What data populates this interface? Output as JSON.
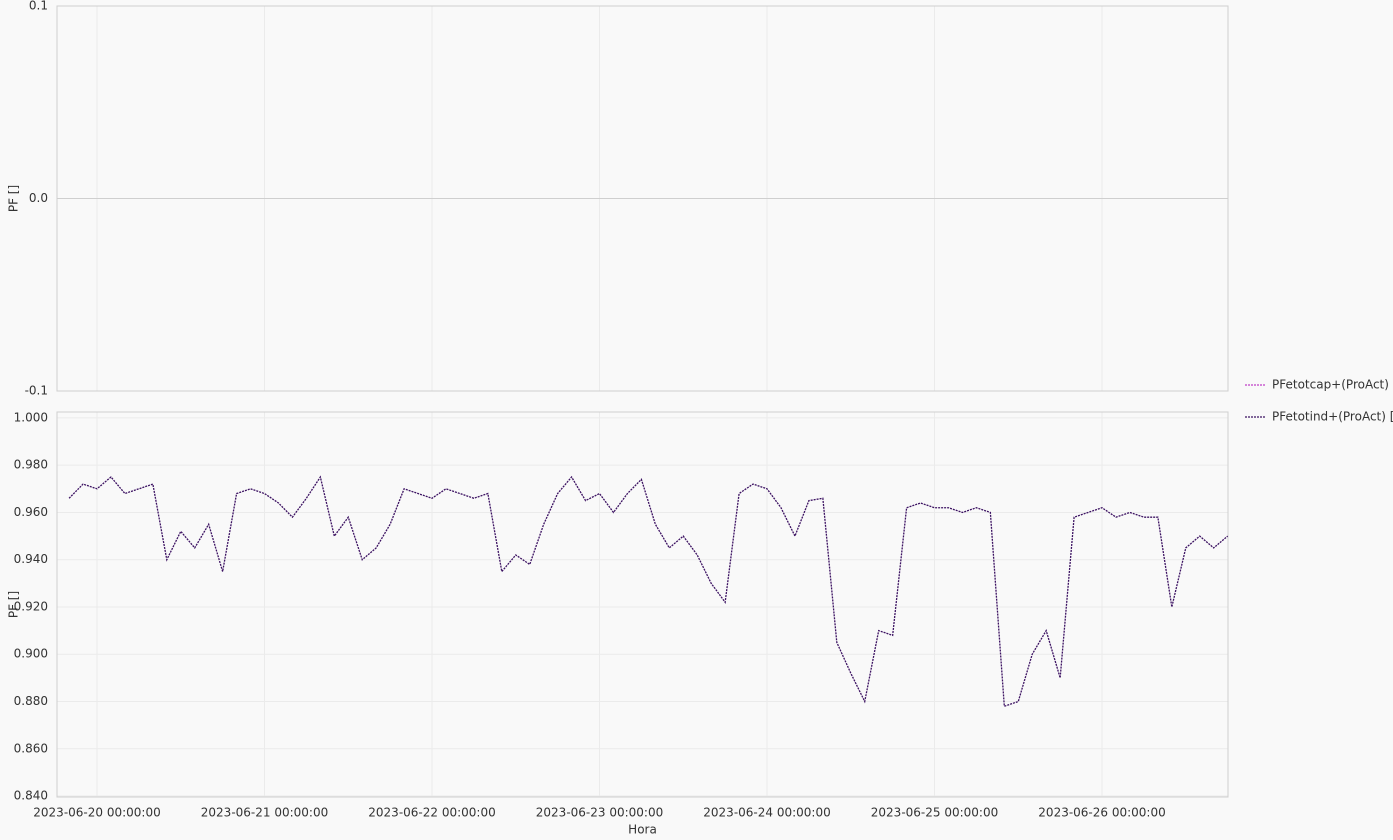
{
  "chart_data": [
    {
      "type": "line",
      "y_label": "PF []",
      "x": [],
      "series": [
        {
          "name": "PFetotcap+(ProAct) []",
          "color": "#c040c8",
          "values": []
        }
      ],
      "xlim": [
        "2023-06-19 18:16:00",
        "2023-06-26 18:03:00"
      ],
      "xticks": [
        "2023-06-20 00:00:00",
        "2023-06-21 00:00:00",
        "2023-06-22 00:00:00",
        "2023-06-23 00:00:00",
        "2023-06-24 00:00:00",
        "2023-06-25 00:00:00",
        "2023-06-26 00:00:00"
      ],
      "ylim": [
        -0.1,
        0.1
      ],
      "yticks": [
        0.1,
        {
          "value": 0,
          "label": "0.0"
        },
        -0.1
      ],
      "grid": true
    },
    {
      "type": "line",
      "y_label": "PF []",
      "x_label": "Hora",
      "x": [
        "2023-06-19 20:00:00",
        "2023-06-19 22:00:00",
        "2023-06-20 00:00:00",
        "2023-06-20 02:00:00",
        "2023-06-20 04:00:00",
        "2023-06-20 06:00:00",
        "2023-06-20 08:00:00",
        "2023-06-20 10:00:00",
        "2023-06-20 12:00:00",
        "2023-06-20 14:00:00",
        "2023-06-20 16:00:00",
        "2023-06-20 18:00:00",
        "2023-06-20 20:00:00",
        "2023-06-20 22:00:00",
        "2023-06-21 00:00:00",
        "2023-06-21 02:00:00",
        "2023-06-21 04:00:00",
        "2023-06-21 06:00:00",
        "2023-06-21 08:00:00",
        "2023-06-21 10:00:00",
        "2023-06-21 12:00:00",
        "2023-06-21 14:00:00",
        "2023-06-21 16:00:00",
        "2023-06-21 18:00:00",
        "2023-06-21 20:00:00",
        "2023-06-21 22:00:00",
        "2023-06-22 00:00:00",
        "2023-06-22 02:00:00",
        "2023-06-22 04:00:00",
        "2023-06-22 06:00:00",
        "2023-06-22 08:00:00",
        "2023-06-22 10:00:00",
        "2023-06-22 12:00:00",
        "2023-06-22 14:00:00",
        "2023-06-22 16:00:00",
        "2023-06-22 18:00:00",
        "2023-06-22 20:00:00",
        "2023-06-22 22:00:00",
        "2023-06-23 00:00:00",
        "2023-06-23 02:00:00",
        "2023-06-23 04:00:00",
        "2023-06-23 06:00:00",
        "2023-06-23 08:00:00",
        "2023-06-23 10:00:00",
        "2023-06-23 12:00:00",
        "2023-06-23 14:00:00",
        "2023-06-23 16:00:00",
        "2023-06-23 18:00:00",
        "2023-06-23 20:00:00",
        "2023-06-23 22:00:00",
        "2023-06-24 00:00:00",
        "2023-06-24 02:00:00",
        "2023-06-24 04:00:00",
        "2023-06-24 06:00:00",
        "2023-06-24 08:00:00",
        "2023-06-24 10:00:00",
        "2023-06-24 12:00:00",
        "2023-06-24 14:00:00",
        "2023-06-24 16:00:00",
        "2023-06-24 18:00:00",
        "2023-06-24 20:00:00",
        "2023-06-24 22:00:00",
        "2023-06-25 00:00:00",
        "2023-06-25 02:00:00",
        "2023-06-25 04:00:00",
        "2023-06-25 06:00:00",
        "2023-06-25 08:00:00",
        "2023-06-25 10:00:00",
        "2023-06-25 12:00:00",
        "2023-06-25 14:00:00",
        "2023-06-25 16:00:00",
        "2023-06-25 18:00:00",
        "2023-06-25 20:00:00",
        "2023-06-25 22:00:00",
        "2023-06-26 00:00:00",
        "2023-06-26 02:00:00",
        "2023-06-26 04:00:00",
        "2023-06-26 06:00:00",
        "2023-06-26 08:00:00",
        "2023-06-26 10:00:00",
        "2023-06-26 12:00:00",
        "2023-06-26 14:00:00",
        "2023-06-26 16:00:00",
        "2023-06-26 18:00:00"
      ],
      "series": [
        {
          "name": "PFetotind+(ProAct) []",
          "color": "#3c1262",
          "values": [
            0.966,
            0.972,
            0.97,
            0.975,
            0.968,
            0.97,
            0.972,
            0.94,
            0.952,
            0.945,
            0.955,
            0.935,
            0.968,
            0.97,
            0.968,
            0.964,
            0.958,
            0.966,
            0.975,
            0.95,
            0.958,
            0.94,
            0.945,
            0.955,
            0.97,
            0.968,
            0.966,
            0.97,
            0.968,
            0.966,
            0.968,
            0.935,
            0.942,
            0.938,
            0.955,
            0.968,
            0.975,
            0.965,
            0.968,
            0.96,
            0.968,
            0.974,
            0.955,
            0.945,
            0.95,
            0.942,
            0.93,
            0.922,
            0.968,
            0.972,
            0.97,
            0.962,
            0.95,
            0.965,
            0.966,
            0.905,
            0.892,
            0.88,
            0.91,
            0.908,
            0.962,
            0.964,
            0.962,
            0.962,
            0.96,
            0.962,
            0.96,
            0.878,
            0.88,
            0.9,
            0.91,
            0.89,
            0.958,
            0.96,
            0.962,
            0.958,
            0.96,
            0.958,
            0.958,
            0.92,
            0.945,
            0.95,
            0.945,
            0.95
          ]
        }
      ],
      "xlim": [
        "2023-06-19 18:16:00",
        "2023-06-26 18:03:00"
      ],
      "xticks": [
        "2023-06-20 00:00:00",
        "2023-06-21 00:00:00",
        "2023-06-22 00:00:00",
        "2023-06-23 00:00:00",
        "2023-06-24 00:00:00",
        "2023-06-25 00:00:00",
        "2023-06-26 00:00:00"
      ],
      "ylim": [
        0.8396,
        1.0025
      ],
      "yticks": [
        {
          "value": 1,
          "label": "1.000"
        },
        {
          "value": 0.98,
          "label": "0.980"
        },
        {
          "value": 0.96,
          "label": "0.960"
        },
        {
          "value": 0.94,
          "label": "0.940"
        },
        {
          "value": 0.92,
          "label": "0.920"
        },
        {
          "value": 0.9,
          "label": "0.900"
        },
        {
          "value": 0.88,
          "label": "0.880"
        },
        {
          "value": 0.86,
          "label": "0.860"
        },
        {
          "value": 0.84,
          "label": "0.840"
        }
      ],
      "grid": true
    }
  ]
}
